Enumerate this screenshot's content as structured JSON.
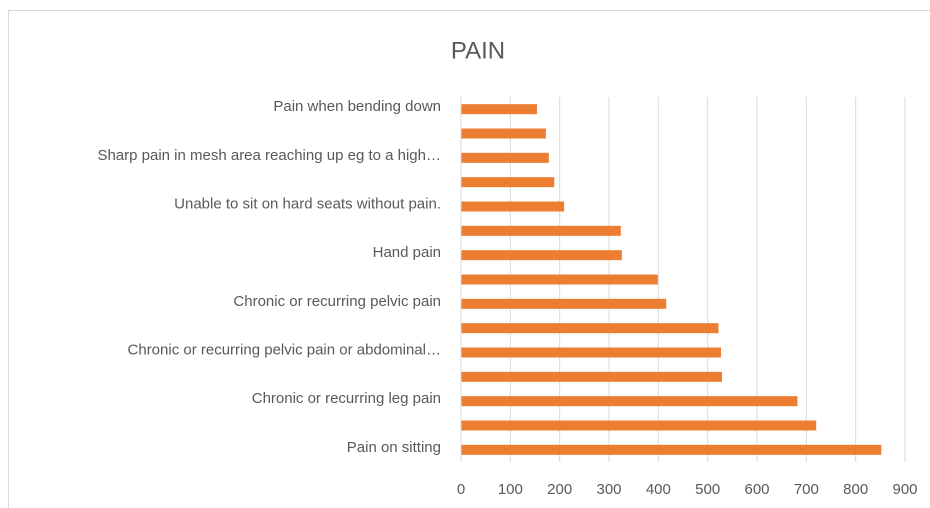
{
  "chart_data": {
    "type": "barh",
    "title": "PAIN",
    "categories": [
      "Pain when bending down",
      null,
      "Sharp pain in mesh area reaching up eg to a high…",
      null,
      "Unable to sit on hard seats without pain.",
      null,
      "Hand pain",
      null,
      "Chronic or recurring pelvic pain",
      null,
      "Chronic or recurring pelvic pain or abdominal…",
      null,
      "Chronic or recurring leg pain",
      null,
      "Pain on sitting"
    ],
    "values": [
      154,
      172,
      178,
      189,
      209,
      324,
      326,
      399,
      416,
      522,
      527,
      529,
      682,
      720,
      852
    ],
    "color": "#ed7d31",
    "xlim": [
      0,
      900
    ],
    "xticks": [
      0,
      100,
      200,
      300,
      400,
      500,
      600,
      700,
      800,
      900
    ],
    "grid": true
  }
}
